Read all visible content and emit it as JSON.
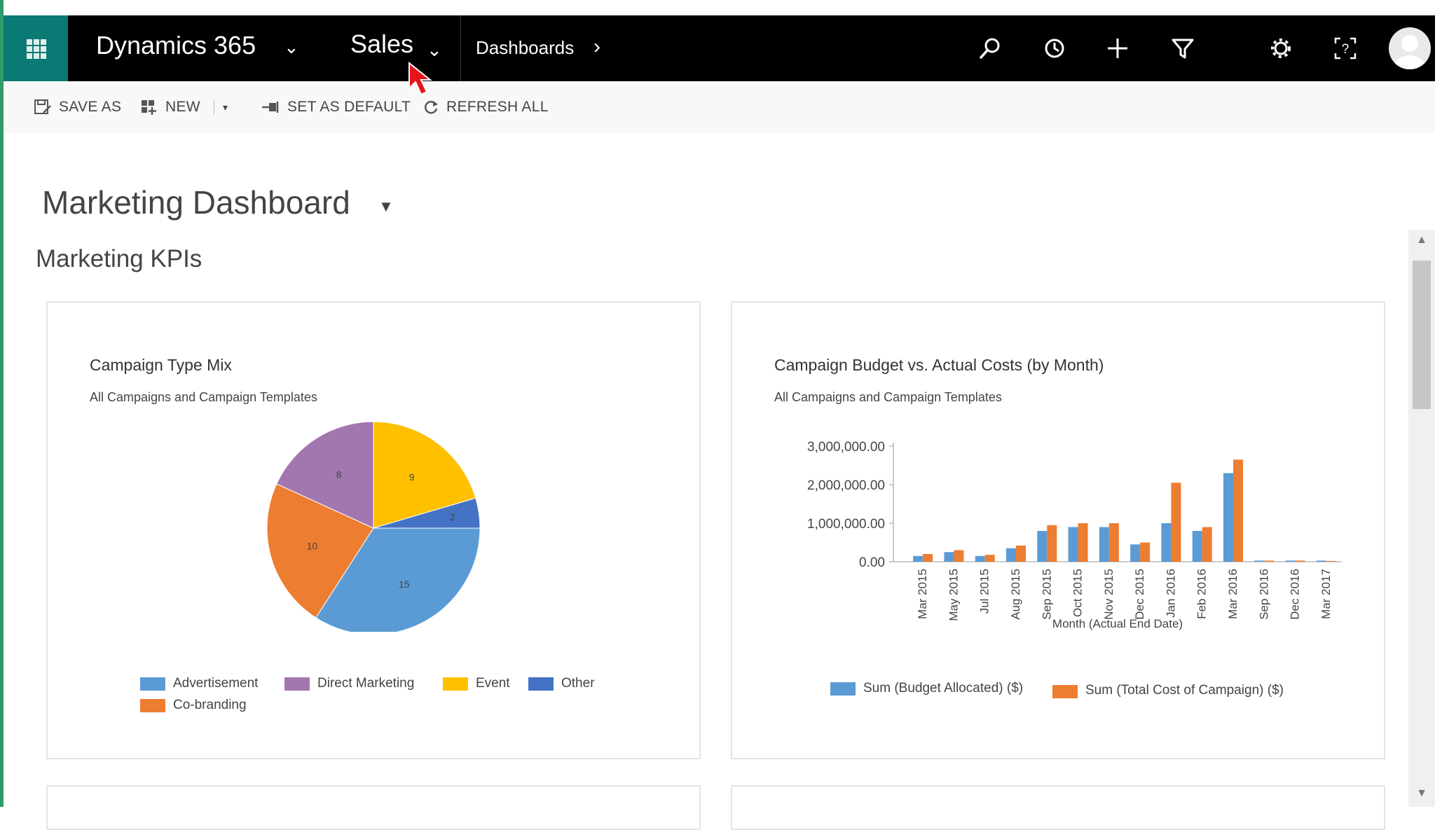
{
  "topbar": {
    "brand": "Dynamics 365",
    "app": "Sales",
    "breadcrumb": "Dashboards",
    "icons": [
      "waffle-icon",
      "search-icon",
      "history-icon",
      "plus-icon",
      "filter-icon",
      "gear-icon",
      "help-icon",
      "user-avatar"
    ]
  },
  "commands": {
    "save_as": "SAVE AS",
    "new": "NEW",
    "set_as_default": "SET AS DEFAULT",
    "refresh_all": "REFRESH ALL"
  },
  "page": {
    "title": "Marketing Dashboard",
    "section": "Marketing KPIs"
  },
  "colors": {
    "advertisement": "#5b9bd5",
    "direct_marketing": "#a277b0",
    "event": "#ffc000",
    "other": "#4472c4",
    "co_branding": "#ed7d31",
    "budget": "#5b9bd5",
    "actual": "#ed7d31"
  },
  "charts": [
    {
      "title": "Campaign Type Mix",
      "subtitle": "All Campaigns and Campaign Templates"
    },
    {
      "title": "Campaign Budget vs. Actual Costs (by Month)",
      "subtitle": "All Campaigns and Campaign Templates",
      "xlabel": "Month (Actual End Date)"
    }
  ],
  "chart_data": [
    {
      "type": "pie",
      "title": "Campaign Type Mix",
      "subtitle": "All Campaigns and Campaign Templates",
      "slices": [
        {
          "name": "Event",
          "value": 9
        },
        {
          "name": "Other",
          "value": 2
        },
        {
          "name": "Advertisement",
          "value": 15
        },
        {
          "name": "Co-branding",
          "value": 10
        },
        {
          "name": "Direct Marketing",
          "value": 8
        }
      ],
      "legend": [
        "Advertisement",
        "Direct Marketing",
        "Event",
        "Other",
        "Co-branding"
      ],
      "legend_placement": "bottom"
    },
    {
      "type": "bar",
      "title": "Campaign Budget vs. Actual Costs (by Month)",
      "subtitle": "All Campaigns and Campaign Templates",
      "xlabel": "Month (Actual End Date)",
      "ylabel": "",
      "ylim": [
        0,
        3000000
      ],
      "yticks": [
        "0.00",
        "1,000,000.00",
        "2,000,000.00",
        "3,000,000.00"
      ],
      "categories": [
        "Mar 2015",
        "May 2015",
        "Jul 2015",
        "Aug 2015",
        "Sep 2015",
        "Oct 2015",
        "Nov 2015",
        "Dec 2015",
        "Jan 2016",
        "Feb 2016",
        "Mar 2016",
        "Sep 2016",
        "Dec 2016",
        "Mar 2017"
      ],
      "series": [
        {
          "name": "Sum (Budget Allocated) ($)",
          "values": [
            150000,
            250000,
            150000,
            350000,
            800000,
            900000,
            900000,
            450000,
            1000000,
            800000,
            2300000,
            30000,
            30000,
            30000
          ]
        },
        {
          "name": "Sum (Total Cost of Campaign) ($)",
          "values": [
            200000,
            300000,
            180000,
            420000,
            950000,
            1000000,
            1000000,
            500000,
            2050000,
            900000,
            2650000,
            30000,
            30000,
            20000
          ]
        }
      ],
      "legend_placement": "bottom"
    }
  ]
}
